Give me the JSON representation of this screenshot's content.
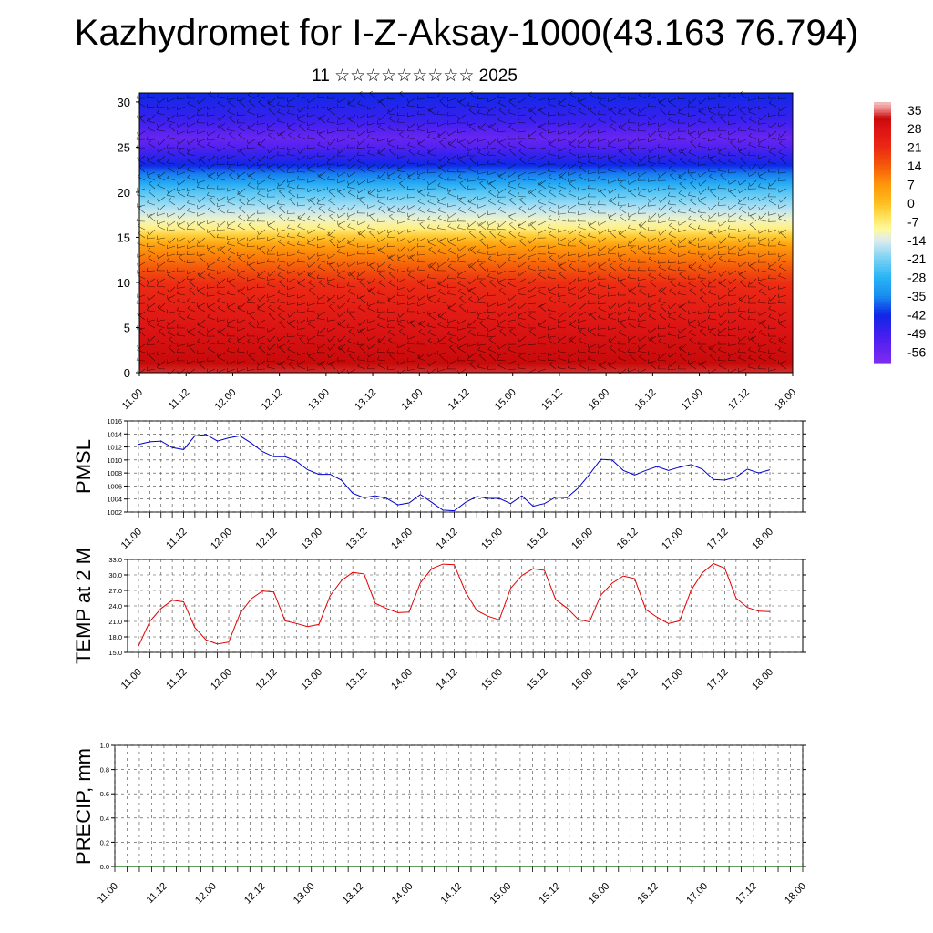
{
  "title": "Kazhydromet for I-Z-Aksay-1000(43.163 76.794)",
  "subtitle": "11 ☆☆☆☆☆☆☆☆☆ 2025",
  "colors": {
    "pmsl_line": "#0000cc",
    "temp_line": "#e00000",
    "precip_line": "#006400",
    "colorbar_top": "#f3c5c5",
    "colorbar_bottom": "#7f2bf0"
  },
  "chart_data": [
    {
      "type": "heatmap",
      "name": "cross-section",
      "x_tick_labels": [
        "11.00",
        "11.12",
        "12.00",
        "12.12",
        "13.00",
        "13.12",
        "14.00",
        "14.12",
        "15.00",
        "15.12",
        "16.00",
        "16.12",
        "17.00",
        "17.12",
        "18.00"
      ],
      "y_tick_labels": [
        "0",
        "5",
        "10",
        "15",
        "20",
        "25",
        "30"
      ],
      "ylim": [
        0,
        31
      ],
      "colorbar_labels": [
        "35",
        "28",
        "21",
        "14",
        "7",
        "0",
        "-7",
        "-14",
        "-21",
        "-28",
        "-35",
        "-42",
        "-49",
        "-56"
      ],
      "colorbar_range": [
        -60,
        38
      ],
      "field_profile": [
        [
          0,
          33
        ],
        [
          5,
          28
        ],
        [
          10,
          20
        ],
        [
          14,
          6
        ],
        [
          16,
          -8
        ],
        [
          20,
          -24
        ],
        [
          23,
          -42
        ],
        [
          25,
          -52
        ],
        [
          26,
          -56
        ],
        [
          28,
          -48
        ],
        [
          31,
          -42
        ]
      ]
    },
    {
      "type": "line",
      "name": "PMSL",
      "ylabel": "PMSL",
      "x_tick_labels": [
        "11.00",
        "11.12",
        "12.00",
        "12.12",
        "13.00",
        "13.12",
        "14.00",
        "14.12",
        "15.00",
        "15.12",
        "16.00",
        "16.12",
        "17.00",
        "17.12",
        "18.00"
      ],
      "y_tick_labels": [
        "1002",
        "1004",
        "1006",
        "1008",
        "1010",
        "1012",
        "1014",
        "1016"
      ],
      "ylim": [
        1002,
        1016
      ],
      "values": [
        1012.4,
        1012.8,
        1012.9,
        1011.9,
        1011.6,
        1013.7,
        1013.9,
        1012.9,
        1013.4,
        1013.7,
        1012.6,
        1011.3,
        1010.5,
        1010.5,
        1009.8,
        1008.5,
        1007.8,
        1007.8,
        1006.9,
        1004.9,
        1004.2,
        1004.5,
        1004.1,
        1003.1,
        1003.4,
        1004.7,
        1003.5,
        1002.3,
        1002.2,
        1003.5,
        1004.4,
        1004.1,
        1004.1,
        1003.3,
        1004.5,
        1002.9,
        1003.3,
        1004.3,
        1004.2,
        1005.7,
        1007.8,
        1010.1,
        1010.0,
        1008.4,
        1007.7,
        1008.4,
        1009.0,
        1008.4,
        1008.9,
        1009.3,
        1008.6,
        1007.0,
        1006.9,
        1007.4,
        1008.6,
        1008.0,
        1008.5
      ]
    },
    {
      "type": "line",
      "name": "TEMP at 2 M",
      "ylabel": "TEMP at 2 M",
      "x_tick_labels": [
        "11.00",
        "11.12",
        "12.00",
        "12.12",
        "13.00",
        "13.12",
        "14.00",
        "14.12",
        "15.00",
        "15.12",
        "16.00",
        "16.12",
        "17.00",
        "17.12",
        "18.00"
      ],
      "y_tick_labels": [
        "15.0",
        "18.0",
        "21.0",
        "24.0",
        "27.0",
        "30.0",
        "33.0"
      ],
      "ylim": [
        15,
        33
      ],
      "values": [
        16.2,
        21.0,
        23.5,
        25.1,
        24.8,
        19.8,
        17.4,
        16.6,
        17.0,
        22.5,
        25.4,
        26.9,
        26.7,
        21.1,
        20.6,
        20.0,
        20.4,
        26.0,
        28.9,
        30.5,
        30.2,
        24.5,
        23.5,
        22.7,
        22.8,
        28.5,
        31.2,
        32.1,
        32.0,
        26.7,
        23.1,
        22.0,
        21.3,
        27.4,
        29.9,
        31.2,
        30.9,
        25.2,
        23.6,
        21.4,
        20.9,
        26.1,
        28.4,
        29.8,
        29.3,
        23.3,
        21.8,
        20.6,
        21.1,
        27.0,
        30.4,
        32.2,
        31.3,
        25.5,
        23.7,
        23.0,
        22.9
      ]
    },
    {
      "type": "line",
      "name": "PRECIP",
      "ylabel": "PRECIP, mm",
      "x_tick_labels": [
        "11.00",
        "11.12",
        "12.00",
        "12.12",
        "13.00",
        "13.12",
        "14.00",
        "14.12",
        "15.00",
        "15.12",
        "16.00",
        "16.12",
        "17.00",
        "17.12",
        "18.00"
      ],
      "y_tick_labels": [
        "0.0",
        "0.2",
        "0.4",
        "0.6",
        "0.8",
        "1.0"
      ],
      "ylim": [
        0,
        1
      ],
      "values": [
        0,
        0,
        0,
        0,
        0,
        0,
        0,
        0,
        0,
        0,
        0,
        0,
        0,
        0,
        0,
        0,
        0,
        0,
        0,
        0,
        0,
        0,
        0,
        0,
        0,
        0,
        0,
        0,
        0,
        0,
        0,
        0,
        0,
        0,
        0,
        0,
        0,
        0,
        0,
        0,
        0,
        0,
        0,
        0,
        0,
        0,
        0,
        0,
        0,
        0,
        0,
        0,
        0,
        0,
        0,
        0,
        0
      ]
    }
  ]
}
